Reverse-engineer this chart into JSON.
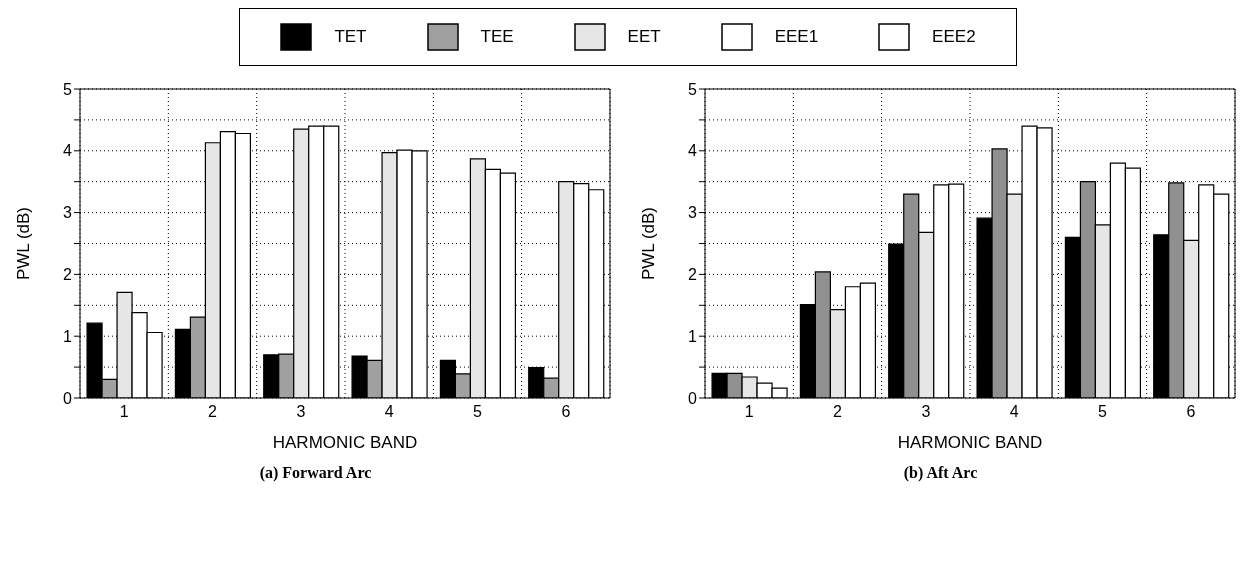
{
  "chart_data": [
    {
      "type": "bar",
      "title": "(a) Forward Arc",
      "xlabel": "HARMONIC BAND",
      "ylabel": "PWL (dB)",
      "categories": [
        "1",
        "2",
        "3",
        "4",
        "5",
        "6"
      ],
      "series": [
        {
          "name": "TET",
          "color": "#000000",
          "values": [
            1.21,
            1.11,
            0.7,
            0.68,
            0.61,
            0.49
          ]
        },
        {
          "name": "TEE",
          "color": "#a0a0a0",
          "values": [
            0.3,
            1.31,
            0.71,
            0.61,
            0.39,
            0.32
          ]
        },
        {
          "name": "EET",
          "color": "#e6e6e6",
          "values": [
            1.71,
            4.13,
            4.35,
            3.97,
            3.87,
            3.5
          ]
        },
        {
          "name": "EEE1",
          "color": "#ffffff",
          "values": [
            1.38,
            4.31,
            4.4,
            4.01,
            3.7,
            3.47
          ]
        },
        {
          "name": "EEE2",
          "color": "#ffffff",
          "values": [
            1.06,
            4.28,
            4.4,
            4.0,
            3.64,
            3.37
          ]
        }
      ],
      "ylim": [
        0,
        5
      ],
      "yticks": [
        0,
        {
          "value": 0.5,
          "label": null
        },
        1,
        {
          "value": 1.5,
          "label": null
        },
        2,
        {
          "value": 2.5,
          "label": null
        },
        3,
        {
          "value": 3.5,
          "label": null
        },
        4,
        {
          "value": 4.5,
          "label": null
        },
        5
      ],
      "grid": true,
      "legend": "top"
    },
    {
      "type": "bar",
      "title": "(b) Aft Arc",
      "xlabel": "HARMONIC BAND",
      "ylabel": "PWL (dB)",
      "categories": [
        "1",
        "2",
        "3",
        "4",
        "5",
        "6"
      ],
      "series": [
        {
          "color": "#000000",
          "values": [
            0.4,
            1.51,
            2.49,
            2.91,
            2.6,
            2.64
          ]
        },
        {
          "color": "#909090",
          "values": [
            0.4,
            2.04,
            3.3,
            4.03,
            3.5,
            3.48
          ]
        },
        {
          "color": "#e6e6e6",
          "values": [
            0.34,
            1.43,
            2.68,
            3.3,
            2.8,
            2.55
          ]
        },
        {
          "color": "#ffffff",
          "values": [
            0.24,
            1.8,
            3.45,
            4.4,
            3.8,
            3.45
          ]
        },
        {
          "color": "#ffffff",
          "values": [
            0.16,
            1.86,
            3.46,
            4.37,
            3.72,
            3.3
          ]
        }
      ],
      "ylim": [
        0,
        5
      ],
      "yticks": [
        0,
        {
          "value": 0.5,
          "label": null
        },
        1,
        {
          "value": 1.5,
          "label": null
        },
        2,
        {
          "value": 2.5,
          "label": null
        },
        3,
        {
          "value": 3.5,
          "label": null
        },
        4,
        {
          "value": 4.5,
          "label": null
        },
        5
      ],
      "grid": true
    }
  ]
}
